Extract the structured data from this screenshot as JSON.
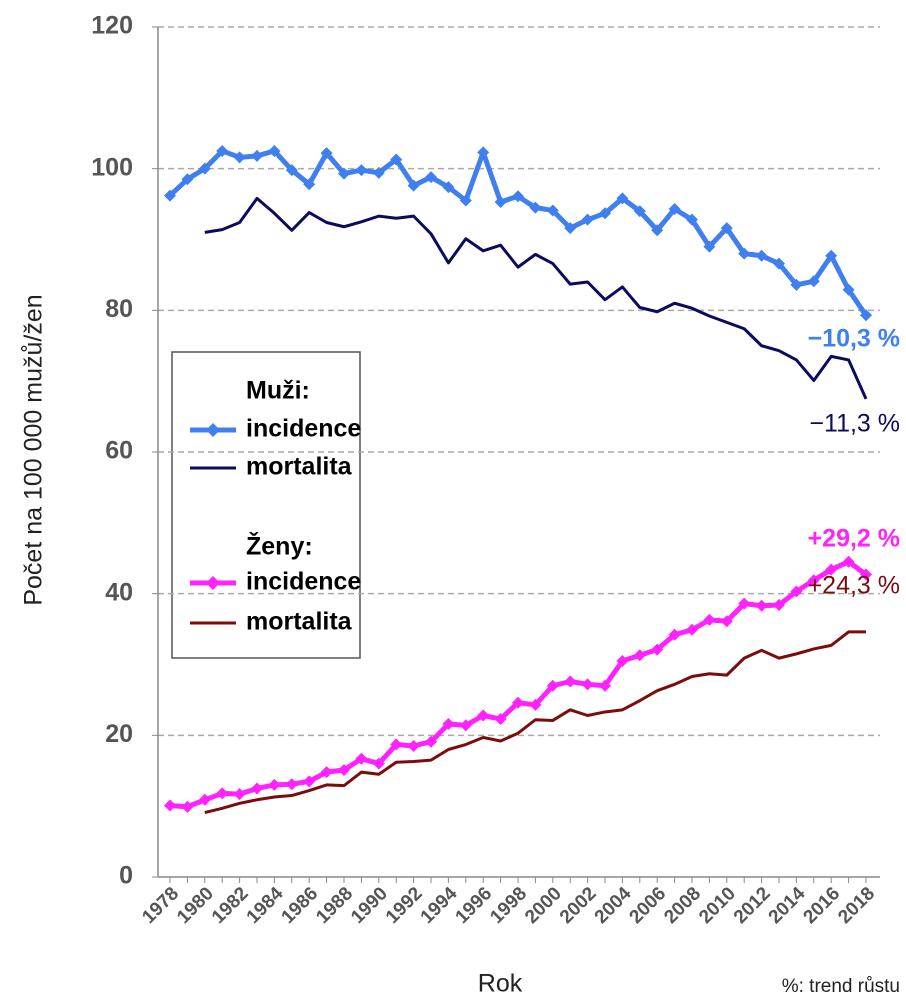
{
  "chart_data": {
    "type": "line",
    "x_label": "Rok",
    "y_label": "Počet na 100 000 mužů/žen",
    "footnote": "%: trend růstu",
    "categories": [
      "1978",
      null,
      "1980",
      null,
      "1982",
      null,
      "1984",
      null,
      "1986",
      null,
      "1988",
      null,
      "1990",
      null,
      "1992",
      null,
      "1994",
      null,
      "1996",
      null,
      "1998",
      null,
      "2000",
      null,
      "2002",
      null,
      "2004",
      null,
      "2006",
      null,
      "2008",
      null,
      "2010",
      null,
      "2012",
      null,
      "2014",
      null,
      "2016",
      null,
      "2018"
    ],
    "ylim": [
      0,
      120
    ],
    "yticks": [
      0,
      20,
      40,
      60,
      80,
      100,
      120
    ],
    "grid": true,
    "series": [
      {
        "group": "Muži:",
        "name": "incidence",
        "color": "#3f7fef",
        "marker": "diamond",
        "trend_label": "−10,3 %",
        "values": [
          96.2,
          98.5,
          100,
          102.5,
          101.6,
          101.8,
          102.5,
          99.8,
          97.8,
          102.2,
          99.3,
          99.8,
          99.4,
          101.3,
          97.6,
          98.8,
          97.4,
          95.5,
          102.3,
          95.3,
          96.1,
          94.5,
          94.1,
          91.6,
          92.8,
          93.7,
          95.8,
          94.0,
          91.3,
          94.3,
          92.8,
          89.0,
          91.6,
          88.0,
          87.7,
          86.6,
          83.6,
          84.1,
          87.7,
          82.9,
          79.3
        ]
      },
      {
        "group": "Muži:",
        "name": "mortalita",
        "color": "#0b0b5e",
        "marker": "none",
        "trend_label": "−11,3 %",
        "values": [
          null,
          null,
          91.0,
          91.4,
          92.4,
          95.8,
          93.7,
          91.3,
          93.8,
          92.4,
          91.8,
          92.5,
          93.3,
          93.0,
          93.3,
          90.8,
          86.7,
          90.1,
          88.4,
          89.2,
          86.1,
          87.9,
          86.6,
          83.7,
          84.0,
          81.5,
          83.3,
          80.4,
          79.8,
          81.0,
          80.3,
          79.2,
          78.3,
          77.4,
          75.0,
          74.3,
          73.0,
          70.1,
          73.5,
          73.0,
          67.5
        ]
      },
      {
        "group": "Ženy:",
        "name": "incidence",
        "color": "#ff22ff",
        "marker": "diamond",
        "trend_label": "+29,2 %",
        "values": [
          10.1,
          9.9,
          10.9,
          11.8,
          11.7,
          12.5,
          13.0,
          13.1,
          13.5,
          14.8,
          15.1,
          16.7,
          16.0,
          18.7,
          18.5,
          19.1,
          21.6,
          21.4,
          22.8,
          22.3,
          24.6,
          24.3,
          27.0,
          27.6,
          27.2,
          27.0,
          30.5,
          31.3,
          32.1,
          34.2,
          34.9,
          36.3,
          36.1,
          38.6,
          38.3,
          38.4,
          40.3,
          41.9,
          43.4,
          44.5,
          42.7
        ]
      },
      {
        "group": "Ženy:",
        "name": "mortalita",
        "color": "#7a0c0c",
        "marker": "none",
        "trend_label": "+24,3 %",
        "values": [
          null,
          null,
          9.1,
          9.7,
          10.4,
          10.9,
          11.3,
          11.5,
          12.2,
          13.0,
          12.9,
          14.8,
          14.5,
          16.2,
          16.3,
          16.5,
          18.0,
          18.7,
          19.7,
          19.2,
          20.3,
          22.2,
          22.1,
          23.6,
          22.8,
          23.3,
          23.6,
          24.9,
          26.3,
          27.2,
          28.3,
          28.7,
          28.5,
          30.9,
          32.0,
          30.9,
          31.5,
          32.2,
          32.7,
          34.6,
          34.6
        ]
      }
    ]
  }
}
